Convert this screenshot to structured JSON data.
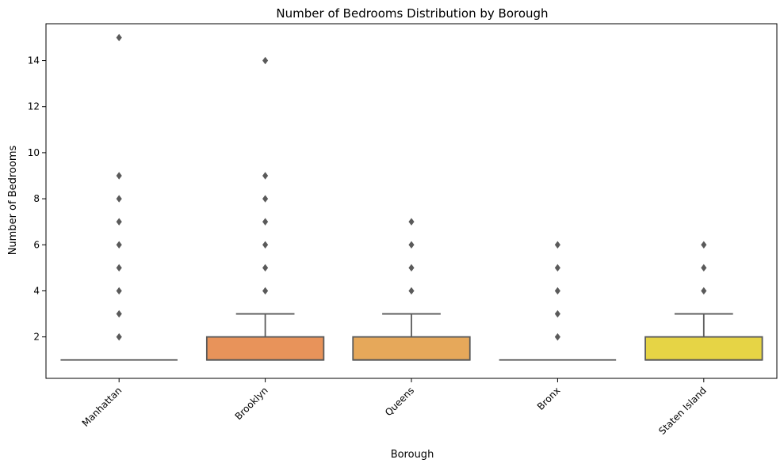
{
  "chart_data": {
    "type": "box",
    "title": "Number of Bedrooms Distribution by Borough",
    "xlabel": "Borough",
    "ylabel": "Number of Bedrooms",
    "ylim": [
      0.2,
      15.6
    ],
    "yticks": [
      2,
      4,
      6,
      8,
      10,
      12,
      14
    ],
    "categories": [
      "Manhattan",
      "Brooklyn",
      "Queens",
      "Bronx",
      "Staten Island"
    ],
    "boxes": [
      {
        "category": "Manhattan",
        "q1": 1,
        "median": 1,
        "q3": 1,
        "whisker_low": 1,
        "whisker_high": 1,
        "outliers": [
          2,
          3,
          4,
          5,
          6,
          7,
          8,
          9,
          15
        ],
        "color": "#f28e8e"
      },
      {
        "category": "Brooklyn",
        "q1": 1,
        "median": 1,
        "q3": 2,
        "whisker_low": 1,
        "whisker_high": 3,
        "outliers": [
          4,
          5,
          6,
          7,
          8,
          9,
          14
        ],
        "color": "#e8935a"
      },
      {
        "category": "Queens",
        "q1": 1,
        "median": 1,
        "q3": 2,
        "whisker_low": 1,
        "whisker_high": 3,
        "outliers": [
          4,
          5,
          6,
          7
        ],
        "color": "#e6a85a"
      },
      {
        "category": "Bronx",
        "q1": 1,
        "median": 1,
        "q3": 1,
        "whisker_low": 1,
        "whisker_high": 1,
        "outliers": [
          2,
          3,
          4,
          5,
          6
        ],
        "color": "#e8c05a"
      },
      {
        "category": "Staten Island",
        "q1": 1,
        "median": 1,
        "q3": 2,
        "whisker_low": 1,
        "whisker_high": 3,
        "outliers": [
          4,
          5,
          6
        ],
        "color": "#e6d445"
      }
    ],
    "grid": false,
    "legend": "none",
    "tick_label_rotation": -45,
    "line_color": "#5a5a5a"
  }
}
